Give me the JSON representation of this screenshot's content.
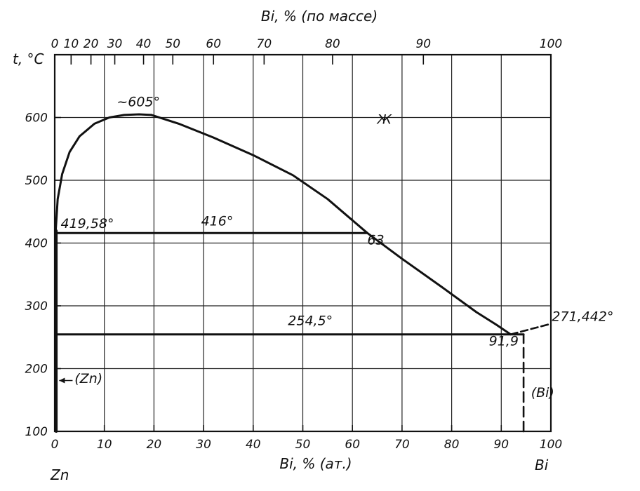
{
  "chart_data": {
    "type": "line",
    "title": "",
    "x_bottom": {
      "label": "Bi, % (ат.)",
      "range": [
        0,
        100
      ],
      "ticks": [
        0,
        10,
        20,
        30,
        40,
        50,
        60,
        70,
        80,
        90,
        100
      ],
      "tick_labels": [
        "0",
        "10",
        "20",
        "30",
        "40",
        "50",
        "60",
        "70",
        "80",
        "90",
        "100"
      ]
    },
    "x_top": {
      "label": "Bi, % (по массе)",
      "tick_labels": [
        "0",
        "10",
        "20",
        "30",
        "40",
        "50",
        "60",
        "70",
        "80",
        "90",
        "100"
      ],
      "tick_at_bottom_value": [
        0,
        3.3,
        7.3,
        12.1,
        17.9,
        23.8,
        32.0,
        42.2,
        56.0,
        74.3,
        100
      ]
    },
    "y": {
      "label": "t, °C",
      "range": [
        100,
        700
      ],
      "ticks": [
        100,
        200,
        300,
        400,
        500,
        600
      ],
      "tick_labels": [
        "100",
        "200",
        "300",
        "400",
        "500",
        "600"
      ]
    },
    "grid": true,
    "series": [
      {
        "role": "liquidus-dome",
        "x": [
          0.2,
          0.6,
          1.5,
          3,
          5,
          8,
          11,
          14,
          17,
          19.5
        ],
        "y": [
          420,
          470,
          510,
          545,
          570,
          590,
          600,
          604,
          605,
          604
        ]
      },
      {
        "role": "liquidus",
        "x": [
          19.5,
          25,
          32,
          40,
          48,
          55,
          63,
          70,
          78,
          85,
          89,
          91.9
        ],
        "y": [
          604,
          590,
          568,
          540,
          508,
          470,
          416,
          375,
          330,
          290,
          270,
          254.5
        ]
      },
      {
        "role": "monotectic",
        "x": [
          0.3,
          63
        ],
        "y": [
          416,
          416
        ]
      },
      {
        "role": "eutectic",
        "x": [
          0.3,
          94.5
        ],
        "y": [
          254.5,
          254.5
        ]
      },
      {
        "role": "bi-liquidus",
        "x": [
          91.9,
          100
        ],
        "y": [
          254.5,
          271.442
        ]
      },
      {
        "role": "zn-solidus",
        "x": [
          0.3,
          0.3
        ],
        "y": [
          100,
          419.58
        ]
      },
      {
        "role": "bi-solvus-dashed",
        "x": [
          94.5,
          94.5
        ],
        "y": [
          100,
          254.5
        ]
      }
    ],
    "annotations": [
      {
        "text": "~605°",
        "x": 12.5,
        "y": 618
      },
      {
        "text": "Ж",
        "x": 65,
        "y": 590
      },
      {
        "text": "419,58°",
        "x": 1.2,
        "y": 424
      },
      {
        "text": "416°",
        "x": 29.5,
        "y": 428
      },
      {
        "text": "63",
        "x": 63,
        "y": 398
      },
      {
        "text": "254,5°",
        "x": 47,
        "y": 269
      },
      {
        "text": "91,9",
        "x": 87.5,
        "y": 237
      },
      {
        "text": "271,442°",
        "x": 100.2,
        "y": 276
      },
      {
        "text": "(Zn)",
        "x": 4,
        "y": 177
      },
      {
        "text": "(Bi)",
        "x": 96,
        "y": 155
      }
    ],
    "element_labels": {
      "left": "Zn",
      "right": "Bi"
    }
  }
}
